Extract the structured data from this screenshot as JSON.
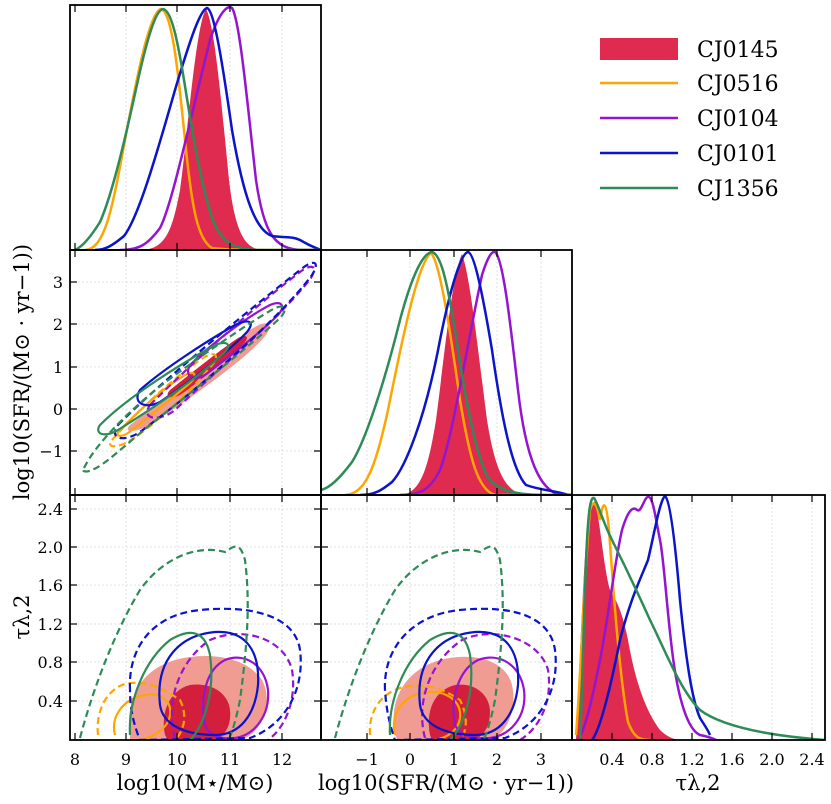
{
  "colors": {
    "CJ0145": "#de2b4f",
    "CJ0145_light": "#f19c93",
    "CJ0145_dark": "#d31f3c",
    "CJ0516": "#ffa500",
    "CJ0104": "#9414d2",
    "CJ0101": "#0a14c8",
    "CJ1356": "#2e8b57"
  },
  "legend": {
    "items": [
      {
        "label": "CJ0145",
        "key": "CJ0145",
        "kind": "patch"
      },
      {
        "label": "CJ0516",
        "key": "CJ0516",
        "kind": "line"
      },
      {
        "label": "CJ0104",
        "key": "CJ0104",
        "kind": "line"
      },
      {
        "label": "CJ0101",
        "key": "CJ0101",
        "kind": "line"
      },
      {
        "label": "CJ1356",
        "key": "CJ1356",
        "kind": "line"
      }
    ]
  },
  "axes": {
    "mass": {
      "range": [
        7.9,
        12.7
      ],
      "ticks": [
        8,
        9,
        10,
        11,
        12
      ],
      "tick_labels": [
        "8",
        "9",
        "10",
        "11",
        "12"
      ],
      "label": "log10(M⋆/M⊙)"
    },
    "sfr": {
      "range": [
        -2.05,
        3.75
      ],
      "ticks": [
        -1,
        0,
        1,
        2,
        3
      ],
      "tick_labels": [
        "−1",
        "0",
        "1",
        "2",
        "3"
      ],
      "label": "log10(SFR/(M⊙ · yr−1))"
    },
    "tau": {
      "range": [
        0.0,
        2.55
      ],
      "ticks": [
        0.4,
        0.8,
        1.2,
        1.6,
        2.0,
        2.4
      ],
      "tick_labels": [
        "0.4",
        "0.8",
        "1.2",
        "1.6",
        "2.0",
        "2.4"
      ],
      "label": "τλ,2"
    }
  },
  "chart_data": {
    "type": "corner",
    "parameters": [
      "log10(M⋆/M⊙)",
      "log10(SFR/(M⊙ · yr−1))",
      "τλ,2"
    ],
    "series": [
      {
        "name": "CJ0145",
        "mass_peak": 10.6,
        "mass_sigma": 0.3,
        "sfr_peak": 1.4,
        "sfr_sigma": 0.35,
        "tau_peak": 0.3
      },
      {
        "name": "CJ0516",
        "mass_peak": 9.75,
        "mass_sigma": 0.33,
        "sfr_peak": 0.5,
        "sfr_sigma": 0.38,
        "tau_peak": 0.25
      },
      {
        "name": "CJ0104",
        "mass_peak": 11.0,
        "mass_sigma": 0.33,
        "sfr_peak": 1.75,
        "sfr_sigma": 0.38,
        "tau_peak": 0.75
      },
      {
        "name": "CJ0101",
        "mass_peak": 10.55,
        "mass_sigma": 0.42,
        "sfr_peak": 1.5,
        "sfr_sigma": 0.45,
        "tau_peak": 0.85
      },
      {
        "name": "CJ1356",
        "mass_peak": 9.75,
        "mass_sigma": 0.5,
        "sfr_peak": 0.5,
        "sfr_sigma": 0.55,
        "tau_peak": 0.2
      }
    ]
  }
}
